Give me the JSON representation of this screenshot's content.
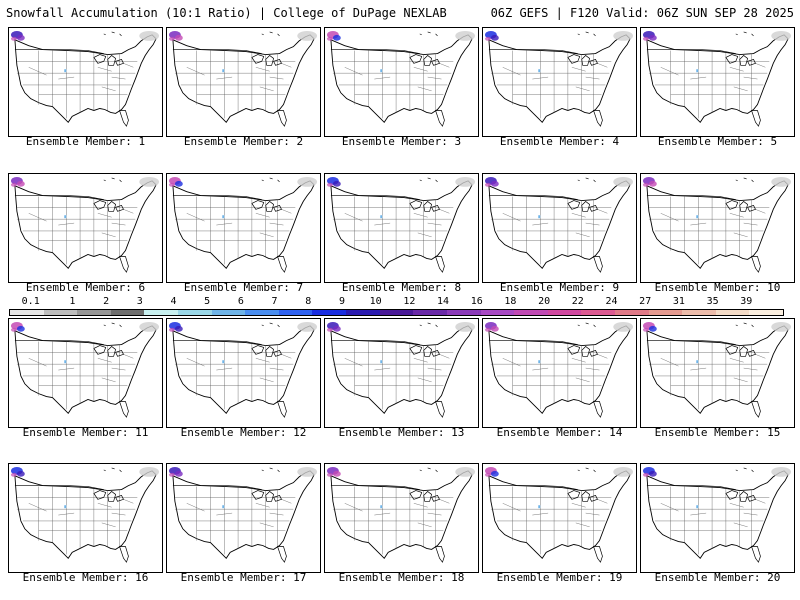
{
  "header": {
    "title": "Snowfall Accumulation (10:1 Ratio) | College of DuPage NEXLAB",
    "run_info": "06Z GEFS | F120 Valid: 06Z SUN SEP 28 2025"
  },
  "panels": [
    {
      "label": "Ensemble Member: 1"
    },
    {
      "label": "Ensemble Member: 2"
    },
    {
      "label": "Ensemble Member: 3"
    },
    {
      "label": "Ensemble Member: 4"
    },
    {
      "label": "Ensemble Member: 5"
    },
    {
      "label": "Ensemble Member: 6"
    },
    {
      "label": "Ensemble Member: 7"
    },
    {
      "label": "Ensemble Member: 8"
    },
    {
      "label": "Ensemble Member: 9"
    },
    {
      "label": "Ensemble Member: 10"
    },
    {
      "label": "Ensemble Member: 11"
    },
    {
      "label": "Ensemble Member: 12"
    },
    {
      "label": "Ensemble Member: 13"
    },
    {
      "label": "Ensemble Member: 14"
    },
    {
      "label": "Ensemble Member: 15"
    },
    {
      "label": "Ensemble Member: 16"
    },
    {
      "label": "Ensemble Member: 17"
    },
    {
      "label": "Ensemble Member: 18"
    },
    {
      "label": "Ensemble Member: 19"
    },
    {
      "label": "Ensemble Member: 20"
    }
  ],
  "colorbar": {
    "tick_labels": [
      "0.1",
      "1",
      "2",
      "3",
      "4",
      "5",
      "6",
      "7",
      "8",
      "9",
      "10",
      "12",
      "14",
      "16",
      "18",
      "20",
      "22",
      "24",
      "27",
      "31",
      "35",
      "39"
    ],
    "colors": [
      "#e6e6e6",
      "#bdbdbd",
      "#969696",
      "#6e6e6e",
      "#c8f0f0",
      "#9ad7e8",
      "#6fb4e8",
      "#4a8ef0",
      "#2f62f0",
      "#1a2ee0",
      "#2a1ab0",
      "#4a1a98",
      "#6a2aa8",
      "#8a3ab8",
      "#a84ac4",
      "#c04ab4",
      "#d048a0",
      "#dc5a92",
      "#e07a88",
      "#e49a90",
      "#ecbcab",
      "#f4dcc8",
      "#fbefe0"
    ]
  }
}
